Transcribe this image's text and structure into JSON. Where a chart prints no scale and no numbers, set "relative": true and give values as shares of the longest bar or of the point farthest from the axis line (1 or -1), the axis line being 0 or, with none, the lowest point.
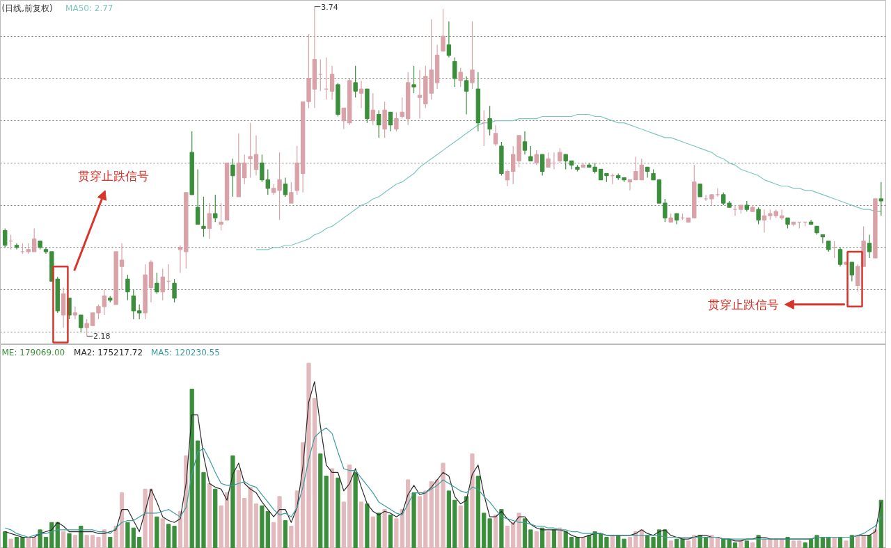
{
  "chart_data": [
    {
      "type": "candlestick",
      "title": "(日线,前复权)",
      "grid": "y",
      "tick_labels": false,
      "categories": [
        null,
        null,
        null,
        null,
        null,
        null,
        null,
        null,
        null,
        null,
        null,
        null,
        null,
        null,
        null,
        null,
        null,
        null,
        null,
        null,
        null,
        null,
        null,
        null,
        null,
        null,
        null,
        null,
        null,
        null,
        null,
        null,
        null,
        null,
        null,
        null,
        null,
        null,
        null,
        null,
        null,
        null,
        null,
        null,
        null,
        null,
        null,
        null,
        null,
        null,
        null,
        null,
        null,
        null,
        null,
        null,
        null,
        null,
        null,
        null,
        null,
        null,
        null,
        null,
        null,
        null,
        null,
        null,
        null,
        null,
        null,
        null,
        null,
        null,
        null,
        null,
        null,
        null,
        null,
        null,
        null,
        null,
        null,
        null,
        null,
        null,
        null,
        null,
        null,
        null,
        null,
        null,
        null,
        null,
        null,
        null,
        null,
        null,
        null,
        null,
        null,
        null,
        null,
        null,
        null,
        null,
        null,
        null,
        null,
        null,
        null,
        null,
        null,
        null,
        null,
        null,
        null,
        null,
        null,
        null,
        null,
        null,
        null,
        null,
        null,
        null,
        null,
        null,
        null,
        null,
        null,
        null,
        null,
        null,
        null,
        null,
        null,
        null,
        null,
        null,
        null,
        null,
        null,
        null,
        null,
        null,
        null,
        null,
        null,
        null,
        null
      ],
      "ylim": [
        2.14,
        3.77
      ],
      "yticks": [
        {
          "value": 2.2,
          "label": null
        },
        {
          "value": 2.4,
          "label": null
        },
        {
          "value": 2.6,
          "label": null
        },
        {
          "value": 2.8,
          "label": null
        },
        {
          "value": 3.0,
          "label": null
        },
        {
          "value": 3.2,
          "label": null
        },
        {
          "value": 3.4,
          "label": null
        },
        {
          "value": 3.6,
          "label": null
        }
      ],
      "ohlc": [
        [
          2.68,
          2.69,
          2.6,
          2.61
        ],
        [
          2.63,
          2.66,
          2.59,
          2.63
        ],
        [
          2.61,
          2.62,
          2.59,
          2.6
        ],
        [
          2.58,
          2.62,
          2.57,
          2.58
        ],
        [
          2.58,
          2.62,
          2.57,
          2.59
        ],
        [
          2.58,
          2.69,
          2.58,
          2.64
        ],
        [
          2.63,
          2.63,
          2.59,
          2.6
        ],
        [
          2.59,
          2.6,
          2.57,
          2.58
        ],
        [
          2.58,
          2.58,
          2.44,
          2.44
        ],
        [
          2.45,
          2.46,
          2.29,
          2.3
        ],
        [
          2.28,
          2.41,
          2.22,
          2.38
        ],
        [
          2.36,
          2.36,
          2.26,
          2.28
        ],
        [
          2.28,
          2.32,
          2.26,
          2.29
        ],
        [
          2.28,
          2.28,
          2.2,
          2.22
        ],
        [
          2.22,
          2.26,
          2.18,
          2.24
        ],
        [
          2.23,
          2.29,
          2.23,
          2.29
        ],
        [
          2.29,
          2.33,
          2.26,
          2.32
        ],
        [
          2.32,
          2.4,
          2.28,
          2.37
        ],
        [
          2.36,
          2.37,
          2.34,
          2.35
        ],
        [
          2.33,
          2.58,
          2.33,
          2.58
        ],
        [
          2.51,
          2.62,
          2.4,
          2.54
        ],
        [
          2.45,
          2.47,
          2.35,
          2.39
        ],
        [
          2.37,
          2.4,
          2.26,
          2.3
        ],
        [
          2.3,
          2.33,
          2.26,
          2.29
        ],
        [
          2.29,
          2.52,
          2.26,
          2.47
        ],
        [
          2.41,
          2.54,
          2.34,
          2.53
        ],
        [
          2.43,
          2.48,
          2.38,
          2.39
        ],
        [
          2.39,
          2.5,
          2.35,
          2.46
        ],
        [
          2.44,
          2.52,
          2.4,
          2.44
        ],
        [
          2.43,
          2.45,
          2.34,
          2.36
        ],
        [
          2.59,
          2.61,
          2.48,
          2.6
        ],
        [
          2.58,
          2.86,
          2.5,
          2.86
        ],
        [
          3.05,
          3.15,
          2.85,
          2.85
        ],
        [
          2.79,
          2.97,
          2.71,
          2.71
        ],
        [
          2.7,
          2.84,
          2.65,
          2.69
        ],
        [
          2.69,
          2.81,
          2.64,
          2.76
        ],
        [
          2.76,
          2.85,
          2.72,
          2.74
        ],
        [
          2.71,
          2.81,
          2.68,
          2.72
        ],
        [
          2.73,
          3.0,
          2.73,
          3.0
        ],
        [
          2.99,
          3.02,
          2.84,
          2.94
        ],
        [
          2.84,
          3.14,
          2.84,
          3.0
        ],
        [
          2.93,
          3.04,
          2.9,
          3.0
        ],
        [
          3.02,
          3.19,
          2.93,
          3.03
        ],
        [
          2.97,
          3.13,
          2.94,
          3.04
        ],
        [
          3.0,
          3.04,
          2.91,
          2.92
        ],
        [
          2.92,
          2.97,
          2.85,
          2.88
        ],
        [
          2.86,
          2.9,
          2.85,
          2.88
        ],
        [
          2.87,
          3.05,
          2.73,
          2.92
        ],
        [
          2.9,
          2.93,
          2.84,
          2.85
        ],
        [
          2.81,
          2.91,
          2.81,
          2.86
        ],
        [
          2.87,
          3.08,
          2.85,
          3.0
        ],
        [
          2.95,
          3.29,
          2.86,
          3.29
        ],
        [
          3.29,
          3.61,
          3.26,
          3.4
        ],
        [
          3.35,
          3.74,
          3.26,
          3.49
        ],
        [
          3.42,
          3.49,
          3.34,
          3.42
        ],
        [
          3.35,
          3.5,
          3.3,
          3.35
        ],
        [
          3.34,
          3.46,
          3.3,
          3.42
        ],
        [
          3.37,
          3.38,
          3.22,
          3.23
        ],
        [
          3.2,
          3.26,
          3.16,
          3.26
        ],
        [
          3.19,
          3.4,
          3.18,
          3.39
        ],
        [
          3.38,
          3.46,
          3.31,
          3.34
        ],
        [
          3.33,
          3.39,
          3.26,
          3.35
        ],
        [
          3.35,
          3.35,
          3.19,
          3.21
        ],
        [
          3.2,
          3.33,
          3.18,
          3.25
        ],
        [
          3.23,
          3.25,
          3.12,
          3.18
        ],
        [
          3.16,
          3.29,
          3.12,
          3.25
        ],
        [
          3.24,
          3.24,
          3.15,
          3.18
        ],
        [
          3.16,
          3.24,
          3.15,
          3.21
        ],
        [
          3.22,
          3.31,
          3.21,
          3.24
        ],
        [
          3.21,
          3.43,
          3.18,
          3.38
        ],
        [
          3.37,
          3.46,
          3.33,
          3.36
        ],
        [
          3.31,
          3.44,
          3.21,
          3.32
        ],
        [
          3.28,
          3.46,
          3.26,
          3.41
        ],
        [
          3.33,
          3.68,
          3.3,
          3.44
        ],
        [
          3.38,
          3.56,
          3.35,
          3.51
        ],
        [
          3.53,
          3.73,
          3.53,
          3.6
        ],
        [
          3.56,
          3.67,
          3.5,
          3.51
        ],
        [
          3.48,
          3.5,
          3.36,
          3.4
        ],
        [
          3.39,
          3.45,
          3.36,
          3.43
        ],
        [
          3.39,
          3.41,
          3.23,
          3.34
        ],
        [
          3.38,
          3.67,
          3.35,
          3.44
        ],
        [
          3.35,
          3.43,
          3.15,
          3.19
        ],
        [
          3.19,
          3.25,
          3.08,
          3.19
        ],
        [
          3.21,
          3.27,
          3.13,
          3.16
        ],
        [
          3.09,
          3.18,
          3.08,
          3.14
        ],
        [
          3.08,
          3.1,
          2.94,
          2.95
        ],
        [
          2.92,
          2.97,
          2.89,
          2.96
        ],
        [
          2.96,
          3.08,
          2.9,
          3.04
        ],
        [
          3.01,
          3.13,
          2.98,
          3.13
        ],
        [
          3.1,
          3.15,
          3.04,
          3.06
        ],
        [
          3.03,
          3.08,
          3.01,
          3.01
        ],
        [
          3.0,
          3.06,
          2.99,
          3.04
        ],
        [
          3.04,
          3.04,
          2.94,
          2.96
        ],
        [
          2.98,
          3.05,
          2.98,
          3.02
        ],
        [
          3.0,
          3.05,
          2.97,
          3.0
        ],
        [
          3.01,
          3.07,
          3.0,
          3.05
        ],
        [
          3.04,
          3.04,
          2.97,
          3.01
        ],
        [
          3.01,
          3.01,
          2.97,
          2.99
        ],
        [
          2.98,
          2.99,
          2.96,
          2.97
        ],
        [
          2.98,
          3.0,
          2.98,
          2.99
        ],
        [
          2.99,
          3.0,
          2.98,
          2.98
        ],
        [
          2.98,
          3.0,
          2.95,
          2.96
        ],
        [
          2.97,
          2.97,
          2.92,
          2.92
        ],
        [
          2.95,
          2.95,
          2.91,
          2.94
        ],
        [
          2.94,
          2.95,
          2.9,
          2.94
        ],
        [
          2.94,
          2.95,
          2.92,
          2.93
        ],
        [
          2.93,
          2.93,
          2.91,
          2.92
        ],
        [
          2.91,
          2.92,
          2.87,
          2.92
        ],
        [
          2.92,
          3.03,
          2.92,
          2.96
        ],
        [
          2.92,
          3.02,
          2.92,
          2.99
        ],
        [
          2.98,
          2.98,
          2.93,
          2.96
        ],
        [
          2.95,
          2.97,
          2.92,
          2.92
        ],
        [
          2.92,
          2.92,
          2.81,
          2.81
        ],
        [
          2.81,
          2.83,
          2.72,
          2.74
        ],
        [
          2.72,
          2.76,
          2.72,
          2.74
        ],
        [
          2.76,
          2.76,
          2.71,
          2.73
        ],
        [
          2.74,
          2.76,
          2.73,
          2.74
        ],
        [
          2.72,
          2.74,
          2.72,
          2.74
        ],
        [
          2.74,
          2.99,
          2.74,
          2.91
        ],
        [
          2.9,
          2.9,
          2.84,
          2.84
        ],
        [
          2.83,
          2.85,
          2.82,
          2.83
        ],
        [
          2.83,
          2.85,
          2.8,
          2.85
        ],
        [
          2.85,
          2.88,
          2.84,
          2.85
        ],
        [
          2.85,
          2.86,
          2.8,
          2.81
        ],
        [
          2.81,
          2.82,
          2.79,
          2.79
        ],
        [
          2.78,
          2.8,
          2.75,
          2.78
        ],
        [
          2.78,
          2.8,
          2.76,
          2.8
        ],
        [
          2.8,
          2.82,
          2.77,
          2.78
        ],
        [
          2.77,
          2.8,
          2.77,
          2.79
        ],
        [
          2.78,
          2.79,
          2.71,
          2.73
        ],
        [
          2.73,
          2.78,
          2.67,
          2.75
        ],
        [
          2.75,
          2.78,
          2.73,
          2.76
        ],
        [
          2.75,
          2.78,
          2.74,
          2.77
        ],
        [
          2.74,
          2.78,
          2.73,
          2.75
        ],
        [
          2.74,
          2.74,
          2.69,
          2.71
        ],
        [
          2.71,
          2.72,
          2.7,
          2.72
        ],
        [
          2.72,
          2.72,
          2.69,
          2.72
        ],
        [
          2.72,
          2.72,
          2.7,
          2.72
        ],
        [
          2.72,
          2.73,
          2.71,
          2.71
        ],
        [
          2.7,
          2.7,
          2.66,
          2.67
        ],
        [
          2.66,
          2.66,
          2.62,
          2.65
        ],
        [
          2.63,
          2.63,
          2.58,
          2.59
        ],
        [
          2.6,
          2.63,
          2.55,
          2.6
        ],
        [
          2.59,
          2.6,
          2.51,
          2.52
        ],
        [
          2.52,
          2.53,
          2.52,
          2.53
        ],
        [
          2.53,
          2.53,
          2.44,
          2.47
        ],
        [
          2.42,
          2.52,
          2.39,
          2.51
        ],
        [
          2.51,
          2.7,
          2.51,
          2.63
        ],
        [
          2.62,
          2.66,
          2.55,
          2.58
        ],
        [
          2.55,
          2.83,
          2.55,
          2.83
        ],
        [
          2.83,
          2.91,
          2.75,
          2.82
        ]
      ],
      "colors": [
        "#3b8e3b",
        "#d8a2a8",
        "#3b8e3b",
        "#d8a2a8",
        "#d8a2a8",
        "#d8a2a8",
        "#3b8e3b",
        "#3b8e3b",
        "#3b8e3b",
        "#3b8e3b",
        "#d8a2a8",
        "#3b8e3b",
        "#d8a2a8",
        "#3b8e3b",
        "#d8a2a8",
        "#d8a2a8",
        "#d8a2a8",
        "#d8a2a8",
        "#3b8e3b",
        "#d8a2a8",
        "#d8a2a8",
        "#3b8e3b",
        "#3b8e3b",
        "#3b8e3b",
        "#d8a2a8",
        "#d8a2a8",
        "#3b8e3b",
        "#d8a2a8",
        "#d8a2a8",
        "#3b8e3b",
        "#d8a2a8",
        "#d8a2a8",
        "#3b8e3b",
        "#3b8e3b",
        "#3b8e3b",
        "#d8a2a8",
        "#3b8e3b",
        "#d8a2a8",
        "#d8a2a8",
        "#3b8e3b",
        "#d8a2a8",
        "#d8a2a8",
        "#d8a2a8",
        "#d8a2a8",
        "#3b8e3b",
        "#3b8e3b",
        "#d8a2a8",
        "#d8a2a8",
        "#3b8e3b",
        "#d8a2a8",
        "#d8a2a8",
        "#d8a2a8",
        "#d8a2a8",
        "#d8a2a8",
        "#d8a2a8",
        "#d8a2a8",
        "#d8a2a8",
        "#3b8e3b",
        "#d8a2a8",
        "#d8a2a8",
        "#3b8e3b",
        "#d8a2a8",
        "#3b8e3b",
        "#d8a2a8",
        "#3b8e3b",
        "#d8a2a8",
        "#3b8e3b",
        "#d8a2a8",
        "#d8a2a8",
        "#d8a2a8",
        "#3b8e3b",
        "#d8a2a8",
        "#d8a2a8",
        "#d8a2a8",
        "#d8a2a8",
        "#d8a2a8",
        "#3b8e3b",
        "#3b8e3b",
        "#d8a2a8",
        "#3b8e3b",
        "#d8a2a8",
        "#3b8e3b",
        "#d8a2a8",
        "#3b8e3b",
        "#d8a2a8",
        "#3b8e3b",
        "#d8a2a8",
        "#d8a2a8",
        "#d8a2a8",
        "#3b8e3b",
        "#3b8e3b",
        "#d8a2a8",
        "#3b8e3b",
        "#d8a2a8",
        "#d8a2a8",
        "#d8a2a8",
        "#3b8e3b",
        "#3b8e3b",
        "#3b8e3b",
        "#d8a2a8",
        "#3b8e3b",
        "#3b8e3b",
        "#3b8e3b",
        "#3b8e3b",
        "#d8a2a8",
        "#3b8e3b",
        "#3b8e3b",
        "#d8a2a8",
        "#d8a2a8",
        "#d8a2a8",
        "#3b8e3b",
        "#3b8e3b",
        "#3b8e3b",
        "#3b8e3b",
        "#d8a2a8",
        "#3b8e3b",
        "#d8a2a8",
        "#d8a2a8",
        "#d8a2a8",
        "#3b8e3b",
        "#d8a2a8",
        "#d8a2a8",
        "#d8a2a8",
        "#3b8e3b",
        "#3b8e3b",
        "#d8a2a8",
        "#d8a2a8",
        "#3b8e3b",
        "#d8a2a8",
        "#3b8e3b",
        "#d8a2a8",
        "#d8a2a8",
        "#d8a2a8",
        "#d8a2a8",
        "#3b8e3b",
        "#d8a2a8",
        "#d8a2a8",
        "#d8a2a8",
        "#3b8e3b",
        "#3b8e3b",
        "#3b8e3b",
        "#3b8e3b",
        "#d8a2a8",
        "#3b8e3b",
        "#d8a2a8",
        "#3b8e3b",
        "#d8a2a8",
        "#d8a2a8",
        "#3b8e3b",
        "#d8a2a8",
        "#3b8e3b"
      ],
      "series": [
        {
          "name": "MA50: 2.77",
          "type": "line",
          "color": "#7cc6c0",
          "values": [
            null,
            null,
            null,
            null,
            null,
            null,
            null,
            null,
            null,
            null,
            null,
            null,
            null,
            null,
            null,
            null,
            null,
            null,
            null,
            null,
            null,
            null,
            null,
            null,
            null,
            null,
            null,
            null,
            null,
            null,
            null,
            null,
            null,
            null,
            null,
            null,
            null,
            null,
            null,
            null,
            null,
            null,
            null,
            2.59,
            2.59,
            2.59,
            2.6,
            2.6,
            2.61,
            2.61,
            2.62,
            2.63,
            2.64,
            2.66,
            2.67,
            2.69,
            2.7,
            2.72,
            2.74,
            2.76,
            2.78,
            2.8,
            2.81,
            2.83,
            2.84,
            2.86,
            2.88,
            2.9,
            2.91,
            2.93,
            2.95,
            2.98,
            3.0,
            3.02,
            3.04,
            3.06,
            3.08,
            3.1,
            3.12,
            3.14,
            3.16,
            3.18,
            3.19,
            3.19,
            3.2,
            3.2,
            3.2,
            3.2,
            3.21,
            3.21,
            3.21,
            3.21,
            3.22,
            3.22,
            3.22,
            3.22,
            3.22,
            3.22,
            3.23,
            3.23,
            3.23,
            3.22,
            3.22,
            3.21,
            3.2,
            3.19,
            3.19,
            3.18,
            3.17,
            3.16,
            3.15,
            3.14,
            3.13,
            3.12,
            3.12,
            3.11,
            3.1,
            3.09,
            3.08,
            3.07,
            3.06,
            3.05,
            3.03,
            3.02,
            3.0,
            2.99,
            2.97,
            2.96,
            2.95,
            2.94,
            2.92,
            2.91,
            2.9,
            2.89,
            2.89,
            2.88,
            2.88,
            2.87,
            2.87,
            2.86,
            2.85,
            2.84,
            2.83,
            2.82,
            2.81,
            2.8,
            2.79,
            2.78,
            2.78,
            2.77,
            2.77
          ]
        }
      ],
      "annotations": [
        "3.74",
        "2.18",
        "贯穿止跌信号",
        "贯穿止跌信号"
      ]
    },
    {
      "type": "bar",
      "relative": true,
      "tick_labels": false,
      "categories": [
        null,
        null,
        null,
        null,
        null,
        null,
        null,
        null,
        null,
        null,
        null,
        null,
        null,
        null,
        null,
        null,
        null,
        null,
        null,
        null,
        null,
        null,
        null,
        null,
        null,
        null,
        null,
        null,
        null,
        null,
        null,
        null,
        null,
        null,
        null,
        null,
        null,
        null,
        null,
        null,
        null,
        null,
        null,
        null,
        null,
        null,
        null,
        null,
        null,
        null,
        null,
        null,
        null,
        null,
        null,
        null,
        null,
        null,
        null,
        null,
        null,
        null,
        null,
        null,
        null,
        null,
        null,
        null,
        null,
        null,
        null,
        null,
        null,
        null,
        null,
        null,
        null,
        null,
        null,
        null,
        null,
        null,
        null,
        null,
        null,
        null,
        null,
        null,
        null,
        null,
        null,
        null,
        null,
        null,
        null,
        null,
        null,
        null,
        null,
        null,
        null,
        null,
        null,
        null,
        null,
        null,
        null,
        null,
        null,
        null,
        null,
        null,
        null,
        null,
        null,
        null,
        null,
        null,
        null,
        null,
        null,
        null,
        null,
        null,
        null,
        null,
        null,
        null,
        null,
        null,
        null,
        null,
        null,
        null,
        null,
        null,
        null,
        null,
        null,
        null,
        null,
        null,
        null,
        null,
        null,
        null,
        null,
        null,
        null,
        null,
        null
      ],
      "series": [
        {
          "name": "ME: 179069.00",
          "type": "bar",
          "values": [
            0.09,
            0.05,
            0.06,
            0.06,
            0.06,
            0.06,
            0.1,
            0.06,
            0.14,
            0.14,
            0.09,
            0.08,
            0.07,
            0.12,
            0.07,
            0.07,
            0.06,
            0.1,
            0.06,
            0.12,
            0.3,
            0.14,
            0.11,
            0.06,
            0.32,
            0.32,
            0.17,
            0.16,
            0.13,
            0.12,
            0.2,
            0.5,
            0.86,
            0.58,
            0.41,
            0.35,
            0.32,
            0.23,
            0.3,
            0.5,
            0.42,
            0.27,
            0.33,
            0.24,
            0.23,
            0.2,
            0.14,
            0.28,
            0.15,
            0.12,
            0.31,
            0.57,
            1.0,
            0.81,
            0.51,
            0.39,
            0.43,
            0.38,
            0.25,
            0.45,
            0.41,
            0.25,
            0.24,
            0.17,
            0.19,
            0.21,
            0.18,
            0.16,
            0.21,
            0.37,
            0.3,
            0.28,
            0.31,
            0.36,
            0.37,
            0.46,
            0.31,
            0.26,
            0.23,
            0.28,
            0.51,
            0.39,
            0.19,
            0.16,
            0.18,
            0.21,
            0.12,
            0.14,
            0.19,
            0.16,
            0.1,
            0.09,
            0.11,
            0.09,
            0.1,
            0.11,
            0.09,
            0.06,
            0.06,
            0.06,
            0.07,
            0.09,
            0.08,
            0.06,
            0.07,
            0.07,
            0.05,
            0.06,
            0.09,
            0.1,
            0.07,
            0.06,
            0.1,
            0.1,
            0.04,
            0.05,
            0.05,
            0.04,
            0.07,
            0.07,
            0.06,
            0.07,
            0.06,
            0.05,
            0.05,
            0.03,
            0.04,
            0.04,
            0.03,
            0.07,
            0.05,
            0.05,
            0.05,
            0.05,
            0.06,
            0.04,
            0.04,
            0.03,
            0.05,
            0.07,
            0.06,
            0.06,
            0.06,
            0.06,
            0.04,
            0.07,
            0.07,
            0.07,
            0.07,
            0.1,
            0.26
          ],
          "colors": [
            "#3b8e3b",
            "#e2b9bd",
            "#3b8e3b",
            "#3b8e3b",
            "#e2b9bd",
            "#e2b9bd",
            "#3b8e3b",
            "#3b8e3b",
            "#3b8e3b",
            "#3b8e3b",
            "#e2b9bd",
            "#3b8e3b",
            "#e2b9bd",
            "#3b8e3b",
            "#e2b9bd",
            "#e2b9bd",
            "#e2b9bd",
            "#e2b9bd",
            "#3b8e3b",
            "#e2b9bd",
            "#e2b9bd",
            "#3b8e3b",
            "#3b8e3b",
            "#3b8e3b",
            "#e2b9bd",
            "#e2b9bd",
            "#3b8e3b",
            "#e2b9bd",
            "#3b8e3b",
            "#3b8e3b",
            "#e2b9bd",
            "#e2b9bd",
            "#3b8e3b",
            "#3b8e3b",
            "#3b8e3b",
            "#e2b9bd",
            "#3b8e3b",
            "#e2b9bd",
            "#e2b9bd",
            "#3b8e3b",
            "#e2b9bd",
            "#e2b9bd",
            "#e2b9bd",
            "#e2b9bd",
            "#3b8e3b",
            "#3b8e3b",
            "#e2b9bd",
            "#e2b9bd",
            "#3b8e3b",
            "#e2b9bd",
            "#e2b9bd",
            "#e2b9bd",
            "#e2b9bd",
            "#e2b9bd",
            "#3b8e3b",
            "#3b8e3b",
            "#e2b9bd",
            "#3b8e3b",
            "#e2b9bd",
            "#e2b9bd",
            "#3b8e3b",
            "#e2b9bd",
            "#3b8e3b",
            "#e2b9bd",
            "#3b8e3b",
            "#e2b9bd",
            "#3b8e3b",
            "#e2b9bd",
            "#e2b9bd",
            "#e2b9bd",
            "#3b8e3b",
            "#e2b9bd",
            "#e2b9bd",
            "#e2b9bd",
            "#e2b9bd",
            "#e2b9bd",
            "#3b8e3b",
            "#3b8e3b",
            "#e2b9bd",
            "#3b8e3b",
            "#e2b9bd",
            "#3b8e3b",
            "#3b8e3b",
            "#3b8e3b",
            "#e2b9bd",
            "#3b8e3b",
            "#e2b9bd",
            "#e2b9bd",
            "#e2b9bd",
            "#3b8e3b",
            "#3b8e3b",
            "#e2b9bd",
            "#3b8e3b",
            "#e2b9bd",
            "#3b8e3b",
            "#e2b9bd",
            "#3b8e3b",
            "#3b8e3b",
            "#3b8e3b",
            "#e2b9bd",
            "#3b8e3b",
            "#3b8e3b",
            "#3b8e3b",
            "#3b8e3b",
            "#e2b9bd",
            "#3b8e3b",
            "#3b8e3b",
            "#e2b9bd",
            "#e2b9bd",
            "#e2b9bd",
            "#3b8e3b",
            "#3b8e3b",
            "#3b8e3b",
            "#3b8e3b",
            "#e2b9bd",
            "#3b8e3b",
            "#3b8e3b",
            "#e2b9bd",
            "#e2b9bd",
            "#3b8e3b",
            "#3b8e3b",
            "#e2b9bd",
            "#e2b9bd",
            "#3b8e3b",
            "#3b8e3b",
            "#3b8e3b",
            "#e2b9bd",
            "#3b8e3b",
            "#e2b9bd",
            "#3b8e3b",
            "#e2b9bd",
            "#e2b9bd",
            "#e2b9bd",
            "#e2b9bd",
            "#3b8e3b",
            "#e2b9bd",
            "#e2b9bd",
            "#3b8e3b",
            "#3b8e3b",
            "#3b8e3b",
            "#3b8e3b",
            "#3b8e3b",
            "#e2b9bd",
            "#3b8e3b",
            "#e2b9bd",
            "#3b8e3b",
            "#e2b9bd",
            "#e2b9bd",
            "#3b8e3b",
            "#e2b9bd",
            "#3b8e3b"
          ]
        },
        {
          "name": "MA2: 175217.72",
          "type": "line",
          "color": "#2b2b2b",
          "values": [
            0.09,
            0.08,
            0.07,
            0.06,
            0.06,
            0.06,
            0.08,
            0.09,
            0.1,
            0.14,
            0.12,
            0.09,
            0.09,
            0.09,
            0.09,
            0.09,
            0.08,
            0.08,
            0.09,
            0.1,
            0.21,
            0.21,
            0.15,
            0.09,
            0.2,
            0.32,
            0.25,
            0.17,
            0.15,
            0.14,
            0.16,
            0.35,
            0.72,
            0.72,
            0.5,
            0.35,
            0.33,
            0.32,
            0.26,
            0.4,
            0.46,
            0.35,
            0.32,
            0.3,
            0.25,
            0.21,
            0.17,
            0.21,
            0.21,
            0.14,
            0.22,
            0.44,
            0.79,
            0.9,
            0.66,
            0.45,
            0.41,
            0.41,
            0.31,
            0.35,
            0.43,
            0.33,
            0.24,
            0.2,
            0.18,
            0.2,
            0.19,
            0.17,
            0.19,
            0.29,
            0.34,
            0.29,
            0.3,
            0.33,
            0.37,
            0.41,
            0.39,
            0.28,
            0.24,
            0.26,
            0.4,
            0.45,
            0.29,
            0.17,
            0.17,
            0.2,
            0.16,
            0.13,
            0.17,
            0.17,
            0.13,
            0.11,
            0.1,
            0.1,
            0.1,
            0.1,
            0.09,
            0.07,
            0.06,
            0.06,
            0.07,
            0.08,
            0.08,
            0.07,
            0.07,
            0.07,
            0.07,
            0.07,
            0.08,
            0.1,
            0.08,
            0.07,
            0.09,
            0.1,
            0.07,
            0.06,
            0.05,
            0.05,
            0.06,
            0.07,
            0.07,
            0.06,
            0.06,
            0.05,
            0.05,
            0.04,
            0.04,
            0.05,
            0.05,
            0.06,
            0.06,
            0.05,
            0.05,
            0.05,
            0.05,
            0.05,
            0.05,
            0.05,
            0.05,
            0.06,
            0.06,
            0.06,
            0.06,
            0.06,
            0.06,
            0.06,
            0.07,
            0.07,
            0.07,
            0.09,
            0.25
          ]
        },
        {
          "name": "MA5: 120230.55",
          "type": "line",
          "color": "#3d9c9c",
          "values": [
            0.11,
            0.1,
            0.08,
            0.07,
            0.06,
            0.07,
            0.08,
            0.08,
            0.09,
            0.1,
            0.1,
            0.1,
            0.1,
            0.1,
            0.1,
            0.1,
            0.09,
            0.09,
            0.08,
            0.11,
            0.14,
            0.15,
            0.15,
            0.17,
            0.19,
            0.19,
            0.19,
            0.2,
            0.21,
            0.19,
            0.17,
            0.22,
            0.4,
            0.52,
            0.54,
            0.48,
            0.41,
            0.35,
            0.34,
            0.34,
            0.35,
            0.36,
            0.34,
            0.33,
            0.29,
            0.25,
            0.21,
            0.18,
            0.19,
            0.17,
            0.22,
            0.33,
            0.48,
            0.6,
            0.63,
            0.65,
            0.62,
            0.52,
            0.43,
            0.42,
            0.42,
            0.38,
            0.34,
            0.3,
            0.25,
            0.23,
            0.21,
            0.19,
            0.18,
            0.24,
            0.3,
            0.3,
            0.3,
            0.32,
            0.34,
            0.37,
            0.35,
            0.33,
            0.31,
            0.3,
            0.33,
            0.32,
            0.28,
            0.25,
            0.21,
            0.17,
            0.16,
            0.15,
            0.14,
            0.14,
            0.13,
            0.12,
            0.12,
            0.11,
            0.11,
            0.1,
            0.1,
            0.09,
            0.09,
            0.08,
            0.08,
            0.08,
            0.08,
            0.07,
            0.07,
            0.07,
            0.07,
            0.07,
            0.07,
            0.07,
            0.07,
            0.07,
            0.07,
            0.06,
            0.06,
            0.06,
            0.06,
            0.06,
            0.06,
            0.06,
            0.06,
            0.06,
            0.06,
            0.05,
            0.05,
            0.05,
            0.05,
            0.05,
            0.05,
            0.05,
            0.05,
            0.05,
            0.05,
            0.05,
            0.05,
            0.05,
            0.05,
            0.05,
            0.05,
            0.06,
            0.06,
            0.06,
            0.06,
            0.06,
            0.06,
            0.06,
            0.07,
            0.08,
            0.1,
            0.12,
            0.17
          ]
        }
      ]
    }
  ]
}
